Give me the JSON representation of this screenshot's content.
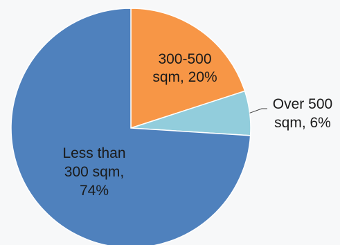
{
  "chart_data": {
    "type": "pie",
    "slices": [
      {
        "label_lines": [
          "300-500",
          "sqm, 20%"
        ],
        "category": "300-500 sqm",
        "value": 20,
        "color": "#F79646"
      },
      {
        "label_lines": [
          "Over 500",
          "sqm, 6%"
        ],
        "category": "Over 500 sqm",
        "value": 6,
        "color": "#92CDDC"
      },
      {
        "label_lines": [
          "Less than",
          "300 sqm,",
          "74%"
        ],
        "category": "Less than 300 sqm",
        "value": 74,
        "color": "#4F81BD"
      }
    ],
    "start_angle": "12 o'clock",
    "direction": "clockwise",
    "legend": "none",
    "data_labels": "category, percent"
  }
}
